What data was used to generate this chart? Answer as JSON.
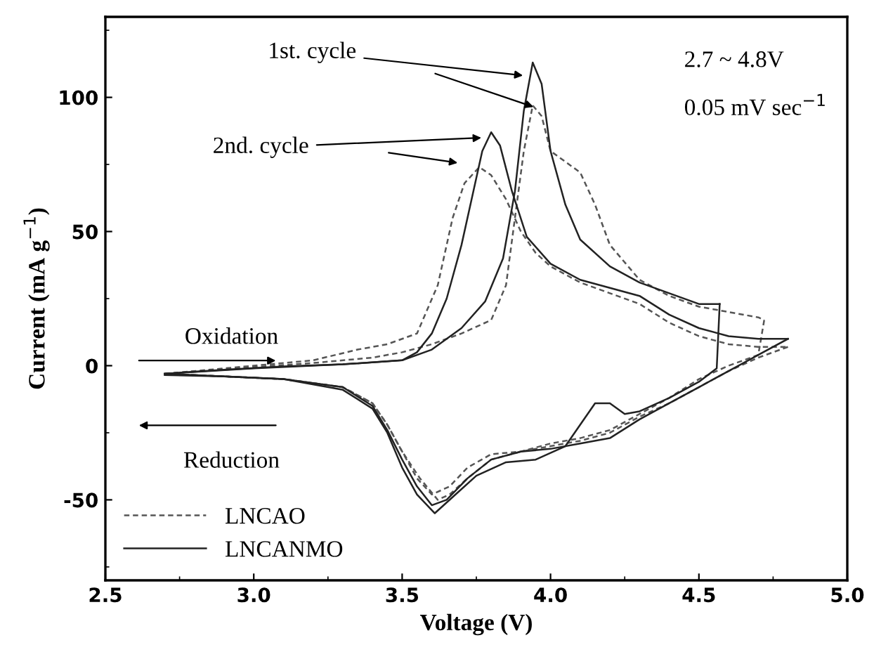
{
  "chart_data": {
    "type": "line",
    "xlabel": "Voltage (V)",
    "ylabel": "Current (mA g$^{−1}$)",
    "xlim": [
      2.5,
      5.0
    ],
    "xticks": [
      2.5,
      {
        "value": 3.0,
        "label": "3.0"
      },
      3.5,
      {
        "value": 4.0,
        "label": "4.0"
      },
      4.5,
      {
        "value": 5.0,
        "label": "5.0"
      }
    ],
    "ylim": [
      -80,
      130
    ],
    "yticks": [
      -50,
      0,
      50,
      100
    ],
    "grid": false,
    "legend": "bottom left",
    "marker": "none",
    "series": [
      {
        "name": "LNCAO",
        "color": "#555555",
        "line_style": "dashed",
        "x": [
          2.7,
          3.0,
          3.2,
          3.4,
          3.5,
          3.6,
          3.7,
          3.8,
          3.85,
          3.88,
          3.91,
          3.94,
          3.97,
          4.0,
          4.05,
          4.1,
          4.15,
          4.2,
          4.3,
          4.4,
          4.5,
          4.6,
          4.7,
          4.72
        ],
        "values": [
          -3,
          -0.5,
          1,
          3,
          5,
          8,
          12,
          17,
          30,
          55,
          80,
          97,
          93,
          80,
          76,
          72,
          60,
          45,
          32,
          26,
          22,
          20,
          18,
          17
        ]
      },
      {
        "color": "#555555",
        "line_style": "dashed",
        "x": [
          4.72,
          4.7,
          4.6,
          4.5,
          4.4,
          4.3,
          4.2,
          4.1,
          4.0,
          3.9,
          3.8,
          3.72,
          3.66,
          3.6,
          3.55,
          3.5,
          3.45,
          3.4,
          3.3,
          3.1,
          2.9,
          2.7
        ],
        "values": [
          17,
          4,
          0,
          -5,
          -12,
          -18,
          -24,
          -27,
          -29,
          -32,
          -33,
          -38,
          -45,
          -48,
          -42,
          -32,
          -22,
          -14,
          -8,
          -5,
          -4,
          -3
        ]
      },
      {
        "color": "#555555",
        "line_style": "dashed",
        "x": [
          2.7,
          3.0,
          3.2,
          3.35,
          3.45,
          3.55,
          3.62,
          3.67,
          3.71,
          3.76,
          3.8,
          3.85,
          3.9,
          3.95,
          4.0,
          4.1,
          4.2,
          4.3,
          4.4,
          4.5,
          4.6,
          4.7,
          4.8
        ],
        "values": [
          -3,
          0,
          2,
          6,
          8,
          12,
          30,
          55,
          68,
          74,
          71,
          62,
          50,
          42,
          37,
          31,
          27,
          23,
          16,
          11,
          8,
          7,
          7
        ]
      },
      {
        "color": "#555555",
        "line_style": "dashed",
        "x": [
          4.8,
          4.7,
          4.6,
          4.5,
          4.4,
          4.3,
          4.2,
          4.1,
          4.0,
          3.9,
          3.8,
          3.72,
          3.66,
          3.62,
          3.56,
          3.5,
          3.45,
          3.4,
          3.3,
          3.1,
          2.9,
          2.7
        ],
        "values": [
          7,
          3,
          -2,
          -8,
          -14,
          -19,
          -25,
          -28,
          -30,
          -32,
          -35,
          -42,
          -48,
          -50,
          -42,
          -32,
          -22,
          -14,
          -8,
          -5,
          -4,
          -3
        ]
      },
      {
        "name": "LNCANMO",
        "color": "#222222",
        "line_style": "solid",
        "x": [
          2.7,
          2.9,
          3.1,
          3.3,
          3.5,
          3.6,
          3.7,
          3.78,
          3.84,
          3.88,
          3.91,
          3.94,
          3.97,
          4.0,
          4.05,
          4.1,
          4.2,
          4.3,
          4.4,
          4.5,
          4.57
        ],
        "values": [
          -3,
          -1.5,
          -0.3,
          0.5,
          2,
          6,
          14,
          24,
          40,
          65,
          95,
          113,
          105,
          80,
          60,
          47,
          37,
          31,
          27,
          23,
          23
        ]
      },
      {
        "color": "#222222",
        "line_style": "solid",
        "x": [
          4.57,
          4.56,
          4.5,
          4.4,
          4.3,
          4.25,
          4.2,
          4.15,
          4.1,
          4.05,
          3.95,
          3.85,
          3.75,
          3.68,
          3.61,
          3.55,
          3.5,
          3.45,
          3.4,
          3.3,
          3.1,
          2.9,
          2.7
        ],
        "values": [
          23,
          -1,
          -6,
          -12,
          -17,
          -18,
          -14,
          -14,
          -22,
          -30,
          -35,
          -36,
          -41,
          -48,
          -55,
          -48,
          -38,
          -25,
          -16,
          -9,
          -5,
          -4,
          -3.5
        ]
      },
      {
        "color": "#222222",
        "line_style": "solid",
        "x": [
          2.7,
          3.0,
          3.3,
          3.5,
          3.55,
          3.6,
          3.65,
          3.7,
          3.74,
          3.77,
          3.8,
          3.83,
          3.87,
          3.92,
          4.0,
          4.1,
          4.2,
          4.3,
          4.4,
          4.5,
          4.6,
          4.7,
          4.8
        ],
        "values": [
          -3,
          -1,
          0.5,
          2,
          5,
          12,
          25,
          45,
          65,
          80,
          87,
          82,
          65,
          48,
          38,
          32,
          29,
          26,
          19,
          14,
          11,
          10,
          10
        ]
      },
      {
        "color": "#222222",
        "line_style": "solid",
        "x": [
          4.8,
          4.7,
          4.6,
          4.5,
          4.4,
          4.3,
          4.2,
          4.1,
          4.0,
          3.9,
          3.8,
          3.72,
          3.65,
          3.6,
          3.55,
          3.5,
          3.45,
          3.4,
          3.3,
          3.1,
          2.9,
          2.7
        ],
        "values": [
          10,
          4,
          -2,
          -8,
          -14,
          -20,
          -27,
          -29,
          -31,
          -32,
          -35,
          -42,
          -50,
          -52,
          -45,
          -35,
          -24,
          -15,
          -8,
          -5,
          -4,
          -3
        ]
      }
    ],
    "annotations": [
      {
        "text": "1st. cycle",
        "x": 3.92,
        "y": 108
      },
      {
        "text": "2nd. cycle",
        "x": 3.78,
        "y": 85
      },
      "Oxidation",
      "Reduction",
      "2.7 ~ 4.8V",
      "0.05 mV sec$^{−1}$"
    ]
  }
}
